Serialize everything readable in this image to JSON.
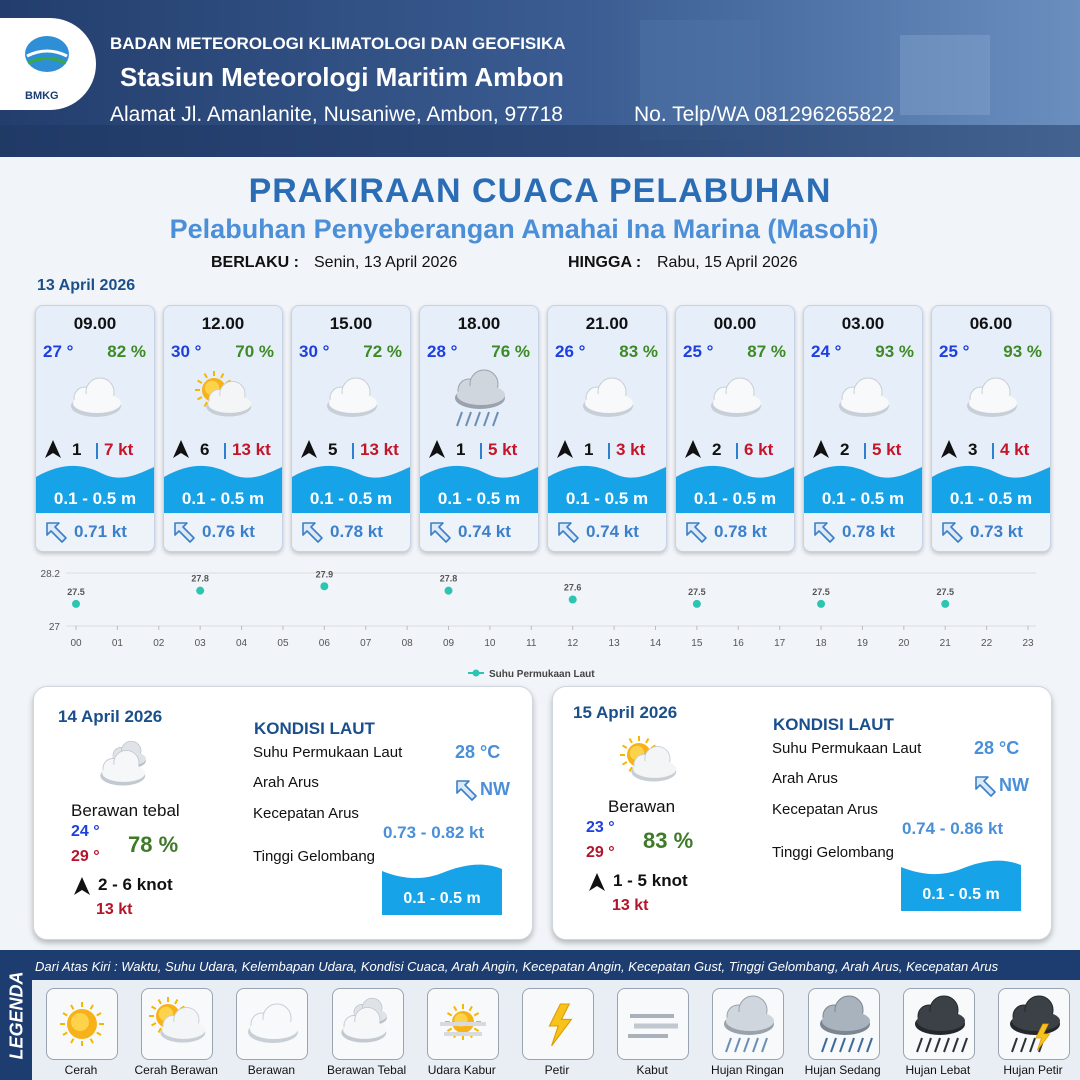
{
  "header": {
    "agency": "BADAN METEOROLOGI KLIMATOLOGI DAN GEOFISIKA",
    "station": "Stasiun Meteorologi Maritim Ambon",
    "address": "Alamat Jl. Amanlanite, Nusaniwe, Ambon, 97718",
    "phone": "No. Telp/WA  081296265822",
    "logo_text": "BMKG"
  },
  "title": "PRAKIRAAN CUACA PELABUHAN",
  "subtitle": "Pelabuhan Penyeberangan Amahai Ina Marina (Masohi)",
  "validity": {
    "from_label": "BERLAKU :",
    "from": "Senin, 13 April 2026",
    "to_label": "HINGGA :",
    "to": "Rabu, 15 April 2026"
  },
  "day1": {
    "date": "13 April 2026",
    "cards": [
      {
        "time": "09.00",
        "temp": "27 °",
        "humidity": "82 %",
        "wind_speed": "1",
        "gust": "7 kt",
        "wave": "0.1 - 0.5 m",
        "current": "0.71 kt"
      },
      {
        "time": "12.00",
        "temp": "30 °",
        "humidity": "70 %",
        "wind_speed": "6",
        "gust": "13 kt",
        "wave": "0.1 - 0.5 m",
        "current": "0.76 kt"
      },
      {
        "time": "15.00",
        "temp": "30 °",
        "humidity": "72 %",
        "wind_speed": "5",
        "gust": "13 kt",
        "wave": "0.1 - 0.5 m",
        "current": "0.78 kt"
      },
      {
        "time": "18.00",
        "temp": "28 °",
        "humidity": "76 %",
        "wind_speed": "1",
        "gust": "5 kt",
        "wave": "0.1 - 0.5 m",
        "current": "0.74 kt"
      },
      {
        "time": "21.00",
        "temp": "26 °",
        "humidity": "83 %",
        "wind_speed": "1",
        "gust": "3 kt",
        "wave": "0.1 - 0.5 m",
        "current": "0.74 kt"
      },
      {
        "time": "00.00",
        "temp": "25 °",
        "humidity": "87 %",
        "wind_speed": "2",
        "gust": "6 kt",
        "wave": "0.1 - 0.5 m",
        "current": "0.78 kt"
      },
      {
        "time": "03.00",
        "temp": "24 °",
        "humidity": "93 %",
        "wind_speed": "2",
        "gust": "5 kt",
        "wave": "0.1 - 0.5 m",
        "current": "0.78 kt"
      },
      {
        "time": "06.00",
        "temp": "25 °",
        "humidity": "93 %",
        "wind_speed": "3",
        "gust": "4 kt",
        "wave": "0.1 - 0.5 m",
        "current": "0.73 kt"
      }
    ]
  },
  "chart_data": {
    "type": "scatter",
    "x": [
      0,
      3,
      6,
      9,
      12,
      15,
      18,
      21
    ],
    "series": [
      {
        "name": "Suhu Permukaan Laut",
        "color": "#2cc5b2",
        "values": [
          27.5,
          27.8,
          27.9,
          27.8,
          27.6,
          27.5,
          27.5,
          27.5
        ]
      }
    ],
    "xlim": [
      0,
      23
    ],
    "xticks": [
      {
        "value": 0,
        "label": "00"
      },
      {
        "value": 1,
        "label": "01"
      },
      {
        "value": 2,
        "label": "02"
      },
      {
        "value": 3,
        "label": "03"
      },
      {
        "value": 4,
        "label": "04"
      },
      {
        "value": 5,
        "label": "05"
      },
      {
        "value": 6,
        "label": "06"
      },
      {
        "value": 7,
        "label": "07"
      },
      {
        "value": 8,
        "label": "08"
      },
      {
        "value": 9,
        "label": "09"
      },
      10,
      11,
      12,
      13,
      14,
      15,
      16,
      17,
      18,
      19,
      20,
      21,
      22,
      23
    ],
    "ylim": [
      27,
      28.2
    ],
    "yticks": [
      27,
      28.2
    ],
    "grid": true
  },
  "days": [
    {
      "date": "14 April 2026",
      "condition": "Berawan tebal",
      "temp_min": "24 °",
      "temp_max": "29 °",
      "humidity": "78 %",
      "wind": "2  - 6 knot",
      "gust": "13 kt",
      "sea": {
        "title": "KONDISI LAUT",
        "sst_label": "Suhu Permukaan Laut",
        "sst": "28 °C",
        "direction_label": "Arah Arus",
        "direction": "NW",
        "speed_label": "Kecepatan Arus",
        "speed": "0.73 - 0.82 kt",
        "wave_label": "Tinggi Gelombang",
        "wave": "0.1 - 0.5 m"
      }
    },
    {
      "date": "15 April 2026",
      "condition": "Berawan",
      "temp_min": "23 °",
      "temp_max": "29 °",
      "humidity": "83 %",
      "wind": "1 - 5 knot",
      "gust": "13 kt",
      "sea": {
        "title": "KONDISI LAUT",
        "sst_label": "Suhu Permukaan Laut",
        "sst": "28 °C",
        "direction_label": "Arah Arus",
        "direction": "NW",
        "speed_label": "Kecepatan Arus",
        "speed": "0.74 - 0.86 kt",
        "wave_label": "Tinggi Gelombang",
        "wave": "0.1 - 0.5 m"
      }
    }
  ],
  "legend": {
    "label": "LEGENDA",
    "description": "Dari Atas Kiri : Waktu, Suhu Udara, Kelembapan Udara, Kondisi Cuaca, Arah Angin, Kecepatan Angin, Kecepatan Gust, Tinggi Gelombang, Arah Arus, Kecepatan Arus",
    "items": [
      "Cerah",
      "Cerah Berawan",
      "Berawan",
      "Berawan Tebal",
      "Udara Kabur",
      "Petir",
      "Kabut",
      "Hujan Ringan",
      "Hujan Sedang",
      "Hujan Lebat",
      "Hujan Petir"
    ]
  }
}
